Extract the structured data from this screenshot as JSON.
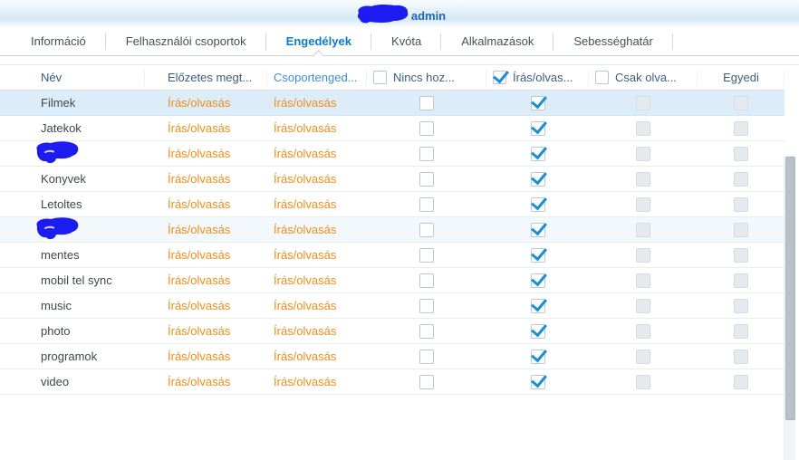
{
  "header": {
    "title_suffix": "admin",
    "title_prefix_redacted": true
  },
  "tabs": [
    {
      "id": "informacio",
      "label": "Információ",
      "active": false
    },
    {
      "id": "felhasznaloi-csoportok",
      "label": "Felhasználói csoportok",
      "active": false
    },
    {
      "id": "engedelyek",
      "label": "Engedélyek",
      "active": true
    },
    {
      "id": "kvota",
      "label": "Kvóta",
      "active": false
    },
    {
      "id": "alkalmazasok",
      "label": "Alkalmazások",
      "active": false
    },
    {
      "id": "sebesseghatar",
      "label": "Sebességhatár",
      "active": false
    }
  ],
  "table": {
    "columns": [
      {
        "id": "name",
        "label": "Név",
        "type": "text"
      },
      {
        "id": "preview",
        "label": "Előzetes megt...",
        "type": "text"
      },
      {
        "id": "group",
        "label": "Csoportenged...",
        "type": "text",
        "accent": true
      },
      {
        "id": "no_access",
        "label": "Nincs hoz...",
        "type": "checkbox",
        "header_checked": false
      },
      {
        "id": "read_write",
        "label": "Írás/olvas...",
        "type": "checkbox",
        "header_checked": true
      },
      {
        "id": "read_only",
        "label": "Csak olva...",
        "type": "checkbox",
        "header_checked": false
      },
      {
        "id": "custom",
        "label": "Egyedi",
        "type": "label"
      }
    ],
    "rows": [
      {
        "name": "Filmek",
        "redacted": false,
        "preview": "Írás/olvasás",
        "group": "Írás/olvasás",
        "no_access": "unchecked",
        "read_write": "checked",
        "read_only": "disabled",
        "custom": "disabled",
        "highlight": "selected"
      },
      {
        "name": "Jatekok",
        "redacted": false,
        "preview": "Írás/olvasás",
        "group": "Írás/olvasás",
        "no_access": "unchecked",
        "read_write": "checked",
        "read_only": "disabled",
        "custom": "disabled",
        "highlight": "none"
      },
      {
        "name": "",
        "redacted": true,
        "preview": "Írás/olvasás",
        "group": "Írás/olvasás",
        "no_access": "unchecked",
        "read_write": "checked",
        "read_only": "disabled",
        "custom": "disabled",
        "highlight": "none"
      },
      {
        "name": "Konyvek",
        "redacted": false,
        "preview": "Írás/olvasás",
        "group": "Írás/olvasás",
        "no_access": "unchecked",
        "read_write": "checked",
        "read_only": "disabled",
        "custom": "disabled",
        "highlight": "none"
      },
      {
        "name": "Letoltes",
        "redacted": false,
        "preview": "Írás/olvasás",
        "group": "Írás/olvasás",
        "no_access": "unchecked",
        "read_write": "checked",
        "read_only": "disabled",
        "custom": "disabled",
        "highlight": "none"
      },
      {
        "name": "",
        "redacted": true,
        "preview": "Írás/olvasás",
        "group": "Írás/olvasás",
        "no_access": "unchecked",
        "read_write": "checked",
        "read_only": "disabled",
        "custom": "disabled",
        "highlight": "faint"
      },
      {
        "name": "mentes",
        "redacted": false,
        "preview": "Írás/olvasás",
        "group": "Írás/olvasás",
        "no_access": "unchecked",
        "read_write": "checked",
        "read_only": "disabled",
        "custom": "disabled",
        "highlight": "none"
      },
      {
        "name": "mobil tel sync",
        "redacted": false,
        "preview": "Írás/olvasás",
        "group": "Írás/olvasás",
        "no_access": "unchecked",
        "read_write": "checked",
        "read_only": "disabled",
        "custom": "disabled",
        "highlight": "none"
      },
      {
        "name": "music",
        "redacted": false,
        "preview": "Írás/olvasás",
        "group": "Írás/olvasás",
        "no_access": "unchecked",
        "read_write": "checked",
        "read_only": "disabled",
        "custom": "disabled",
        "highlight": "none"
      },
      {
        "name": "photo",
        "redacted": false,
        "preview": "Írás/olvasás",
        "group": "Írás/olvasás",
        "no_access": "unchecked",
        "read_write": "checked",
        "read_only": "disabled",
        "custom": "disabled",
        "highlight": "none"
      },
      {
        "name": "programok",
        "redacted": false,
        "preview": "Írás/olvasás",
        "group": "Írás/olvasás",
        "no_access": "unchecked",
        "read_write": "checked",
        "read_only": "disabled",
        "custom": "disabled",
        "highlight": "none"
      },
      {
        "name": "video",
        "redacted": false,
        "preview": "Írás/olvasás",
        "group": "Írás/olvasás",
        "no_access": "unchecked",
        "read_write": "checked",
        "read_only": "disabled",
        "custom": "disabled",
        "highlight": "none"
      }
    ]
  },
  "scrollbar": {
    "present": true
  },
  "colors": {
    "accent_blue": "#0d7ac6",
    "header_text": "#3d5c7e",
    "group_column_accent": "#3e8ed6",
    "permission_orange": "#ee8d15",
    "check_blue": "#1b8fd6",
    "redaction_blue": "#1d1cf0",
    "selected_row_bg": "#dcedf9",
    "title_blue": "#1a66b3"
  }
}
